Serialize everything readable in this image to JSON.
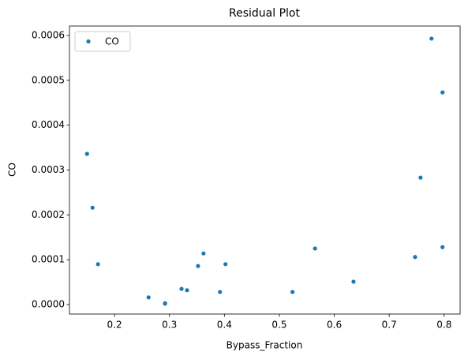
{
  "chart_data": {
    "type": "scatter",
    "title": "Residual Plot",
    "x_label": "Bypass_Fraction",
    "y_label": "CO",
    "series": [
      {
        "name": "CO",
        "color": "#1f77b4",
        "x": [
          0.15,
          0.16,
          0.17,
          0.262,
          0.292,
          0.292,
          0.322,
          0.332,
          0.352,
          0.362,
          0.392,
          0.402,
          0.524,
          0.565,
          0.635,
          0.747,
          0.757,
          0.777,
          0.797,
          0.797
        ],
        "values": [
          0.000336,
          0.000216,
          9e-05,
          1.6e-05,
          3e-06,
          2e-06,
          3.5e-05,
          3.2e-05,
          8.6e-05,
          0.000114,
          2.8e-05,
          9e-05,
          2.8e-05,
          0.000125,
          5.1e-05,
          0.000106,
          0.000283,
          0.000593,
          0.000473,
          0.000128
        ]
      }
    ],
    "xlim": [
      0.118,
      0.829
    ],
    "ylim": [
      -2.11e-05,
      0.000621
    ],
    "xticks": [
      0.2,
      0.3,
      0.4,
      0.5,
      0.6,
      0.7,
      0.8
    ],
    "yticks": [
      {
        "value": 0,
        "label": "0.0000"
      },
      {
        "value": 0.0001,
        "label": "0.0001"
      },
      {
        "value": 0.0002,
        "label": "0.0002"
      },
      {
        "value": 0.0003,
        "label": "0.0003"
      },
      {
        "value": 0.0004,
        "label": "0.0004"
      },
      {
        "value": 0.0005,
        "label": "0.0005"
      },
      {
        "value": 0.0006,
        "label": "0.0006"
      }
    ],
    "legend": "upper left",
    "grid": false
  }
}
